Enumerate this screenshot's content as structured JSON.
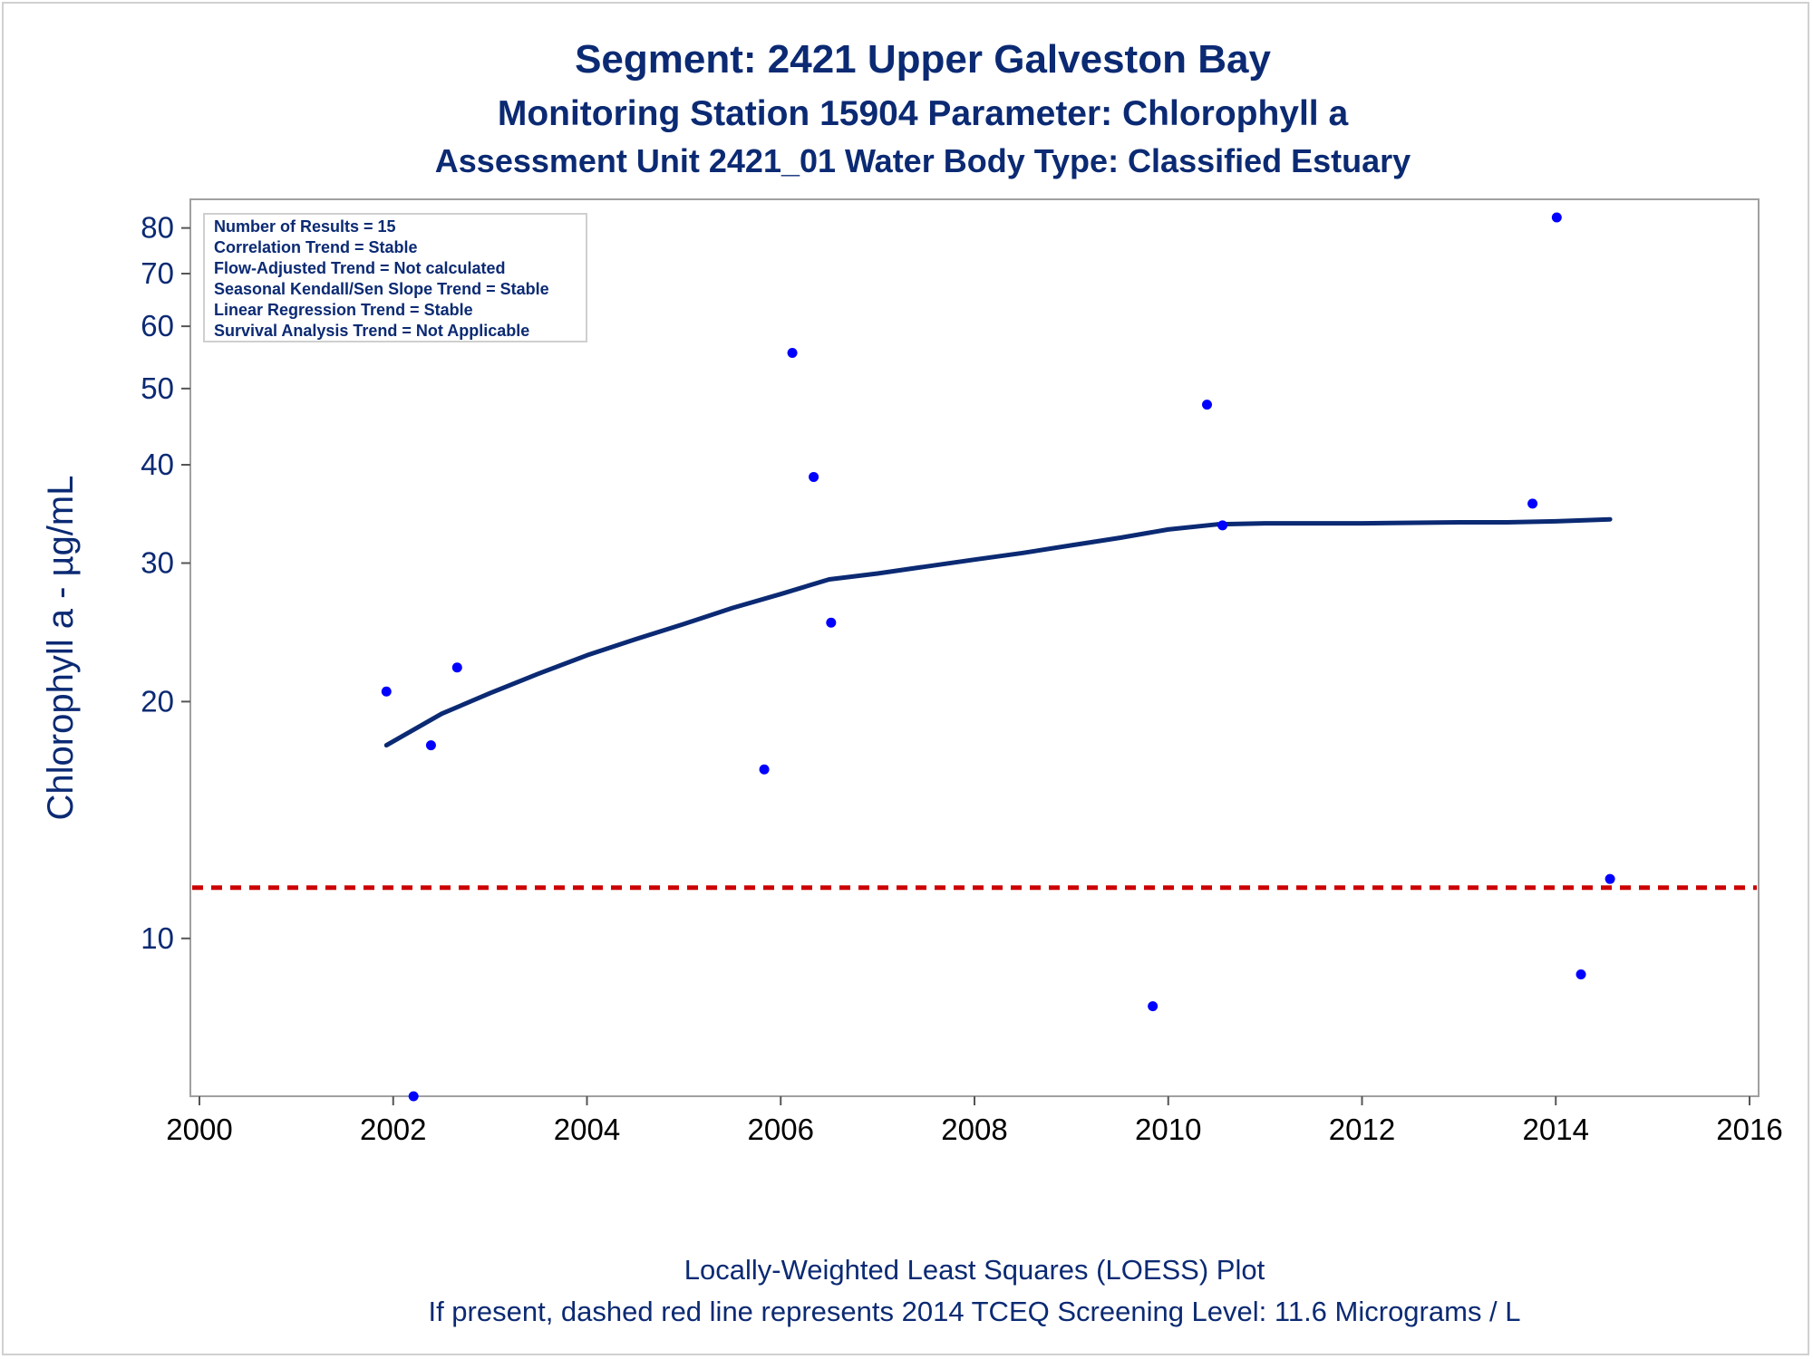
{
  "chart_data": {
    "type": "scatter",
    "title": "Segment: 2421  Upper Galveston Bay",
    "subtitle": "Monitoring Station 15904 Parameter: Chlorophyll a",
    "subtitle2": "Assessment Unit 2421_01   Water Body Type: Classified Estuary",
    "ylabel": "Chlorophyll a -  µg/mL",
    "xlabel": "",
    "y_scale": "log",
    "xlim": [
      2000,
      2016
    ],
    "ylim": [
      6.3,
      87
    ],
    "x_ticks": [
      "2000",
      "2002",
      "2004",
      "2006",
      "2008",
      "2010",
      "2012",
      "2014",
      "2016"
    ],
    "y_ticks": [
      "10",
      "20",
      "30",
      "40",
      "50",
      "60",
      "70",
      "80"
    ],
    "grid": false,
    "inset_lines": [
      "Number of Results = 15",
      "Correlation Trend = Stable",
      "Flow-Adjusted Trend = Not calculated",
      "Seasonal Kendall/Sen Slope Trend = Stable",
      "Linear Regression Trend = Stable",
      "Survival Analysis Trend = Not Applicable"
    ],
    "footnote1": "Locally-Weighted Least Squares (LOESS) Plot",
    "footnote2": "If present, dashed red line represents 2014 TCEQ Screening Level: 11.6 Micrograms / L",
    "series": [
      {
        "type": "scatter",
        "color": "#0000ff",
        "x": [
          2001.93,
          2002.21,
          2002.39,
          2002.66,
          2005.83,
          2006.12,
          2006.34,
          2006.52,
          2009.84,
          2010.4,
          2010.56,
          2013.76,
          2014.01,
          2014.26,
          2014.56
        ],
        "y": [
          20.6,
          6.3,
          17.6,
          22.1,
          16.4,
          55.5,
          38.6,
          25.2,
          8.2,
          47.7,
          33.5,
          35.7,
          82.5,
          9.0,
          11.9
        ]
      },
      {
        "type": "line",
        "color": "#0b2a73",
        "x": [
          2001.93,
          2002.5,
          2003.0,
          2003.5,
          2004.0,
          2004.5,
          2005.0,
          2005.5,
          2006.0,
          2006.5,
          2007.0,
          2007.5,
          2008.0,
          2008.5,
          2009.0,
          2009.5,
          2010.0,
          2010.5,
          2011.0,
          2012.0,
          2013.0,
          2013.5,
          2014.0,
          2014.56
        ],
        "y": [
          17.6,
          19.3,
          20.5,
          21.7,
          22.9,
          24.0,
          25.1,
          26.3,
          27.4,
          28.6,
          29.1,
          29.7,
          30.3,
          30.9,
          31.6,
          32.3,
          33.1,
          33.6,
          33.7,
          33.7,
          33.8,
          33.8,
          33.9,
          34.1
        ]
      },
      {
        "type": "reference-line",
        "color": "#cc0000",
        "y": 11.6
      }
    ]
  }
}
